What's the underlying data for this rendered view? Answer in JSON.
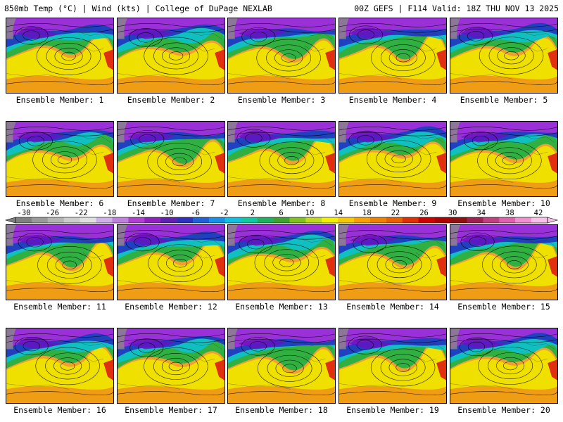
{
  "header": {
    "left_title": "850mb Temp (°C) | Wind (kts) | College of DuPage NEXLAB",
    "right_title": "00Z GEFS | F114 Valid: 18Z THU NOV 13 2025"
  },
  "panels": [
    {
      "label": "Ensemble Member: 1"
    },
    {
      "label": "Ensemble Member: 2"
    },
    {
      "label": "Ensemble Member: 3"
    },
    {
      "label": "Ensemble Member: 4"
    },
    {
      "label": "Ensemble Member: 5"
    },
    {
      "label": "Ensemble Member: 6"
    },
    {
      "label": "Ensemble Member: 7"
    },
    {
      "label": "Ensemble Member: 8"
    },
    {
      "label": "Ensemble Member: 9"
    },
    {
      "label": "Ensemble Member: 10"
    },
    {
      "label": "Ensemble Member: 11"
    },
    {
      "label": "Ensemble Member: 12"
    },
    {
      "label": "Ensemble Member: 13"
    },
    {
      "label": "Ensemble Member: 14"
    },
    {
      "label": "Ensemble Member: 15"
    },
    {
      "label": "Ensemble Member: 16"
    },
    {
      "label": "Ensemble Member: 17"
    },
    {
      "label": "Ensemble Member: 18"
    },
    {
      "label": "Ensemble Member: 19"
    },
    {
      "label": "Ensemble Member: 20"
    }
  ],
  "colorbar": {
    "labels": [
      "-30",
      "-26",
      "-22",
      "-18",
      "-14",
      "-10",
      "-6",
      "-2",
      "2",
      "6",
      "10",
      "14",
      "18",
      "22",
      "26",
      "30",
      "34",
      "38",
      "42"
    ],
    "colors": [
      "#808080",
      "#9a9a9a",
      "#b4b4b4",
      "#cccccc",
      "#e0e0e0",
      "#d0b0e8",
      "#c080e0",
      "#b040d0",
      "#9020c0",
      "#6020b0",
      "#3030c0",
      "#2060d8",
      "#1890e8",
      "#10c0e0",
      "#10c8a0",
      "#20b060",
      "#40a030",
      "#80c020",
      "#c0d820",
      "#f0f000",
      "#f8c800",
      "#f8a000",
      "#f08000",
      "#e86000",
      "#e03000",
      "#d00000",
      "#b00000",
      "#901010",
      "#a02050",
      "#c04080",
      "#e060b0",
      "#f090d0",
      "#f8c0e8"
    ]
  },
  "field_colors": {
    "cold": "#9a30d8",
    "deep_cold": "#6a10c0",
    "blue": "#2040c0",
    "cyan": "#10c0c0",
    "green": "#30b040",
    "yellow": "#f0e000",
    "orange": "#f0a030",
    "warm": "#f08020",
    "hot": "#e03010"
  }
}
